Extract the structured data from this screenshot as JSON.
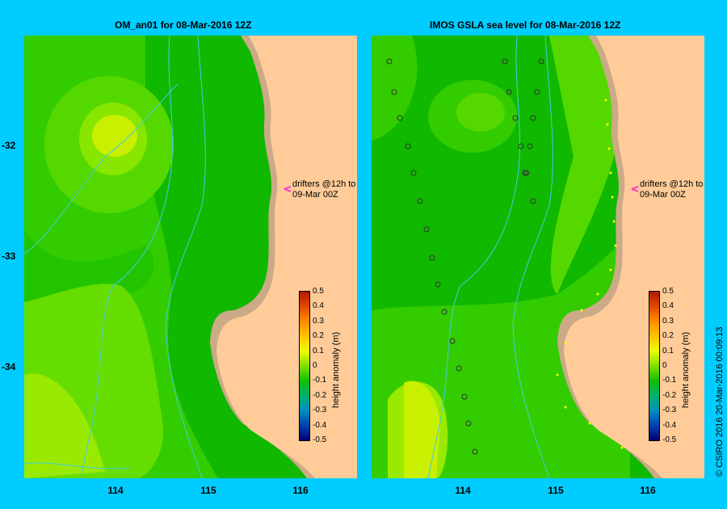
{
  "left_panel": {
    "title": "OM_an01  for 08-Mar-2016 12Z",
    "drifters_label_1": "drifters @12h to",
    "drifters_label_2": "09-Mar 00Z"
  },
  "right_panel": {
    "title": "IMOS GSLA sea level  for 08-Mar-2016 12Z",
    "drifters_label_1": "drifters @12h to",
    "drifters_label_2": "09-Mar 00Z"
  },
  "x_ticks": [
    "114",
    "115",
    "116"
  ],
  "y_ticks": [
    "-32",
    "-33",
    "-34"
  ],
  "colorbar": {
    "title": "height anomaly (m)",
    "labels": [
      "0.5",
      "0.4",
      "0.3",
      "0.2",
      "0.1",
      "0",
      "-0.1",
      "-0.2",
      "-0.3",
      "-0.4",
      "-0.5"
    ],
    "colors": [
      "#b01a00",
      "#e04a00",
      "#ff8c00",
      "#ffc400",
      "#eaff00",
      "#7fe000",
      "#10c000",
      "#00b070",
      "#0090c0",
      "#0040b0",
      "#000070"
    ]
  },
  "credit": "© CSIRO 2016   20-Mar-2016 00:09:13",
  "colors": {
    "land": "#ffcc99",
    "shelf": "#ccaa88",
    "frame": "#00ccff",
    "bathy": "#44ccdd",
    "drifter": "#ff33cc"
  }
}
